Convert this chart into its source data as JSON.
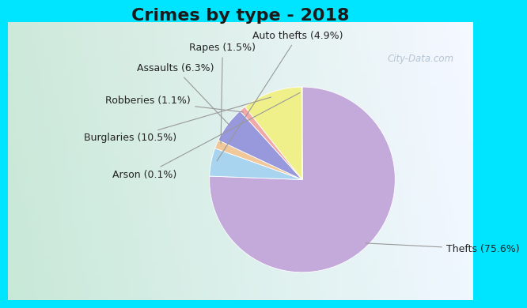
{
  "title": "Crimes by type - 2018",
  "slices": [
    {
      "label": "Thefts (75.6%)",
      "value": 75.6,
      "color": "#C4AADB"
    },
    {
      "label": "Auto thefts (4.9%)",
      "value": 4.9,
      "color": "#A8D4F0"
    },
    {
      "label": "Rapes (1.5%)",
      "value": 1.5,
      "color": "#F0C89A"
    },
    {
      "label": "Assaults (6.3%)",
      "value": 6.3,
      "color": "#9898DD"
    },
    {
      "label": "Robberies (1.1%)",
      "value": 1.1,
      "color": "#F0A8A8"
    },
    {
      "label": "Burglaries (10.5%)",
      "value": 10.5,
      "color": "#F0F08A"
    },
    {
      "label": "Arson (0.1%)",
      "value": 0.1,
      "color": "#D0E8D0"
    }
  ],
  "bg_cyan": "#00E5FF",
  "bg_chart_left": "#C8E8D8",
  "bg_chart_right": "#E8F0F8",
  "title_fontsize": 16,
  "label_fontsize": 9,
  "watermark": "City-Data.com"
}
